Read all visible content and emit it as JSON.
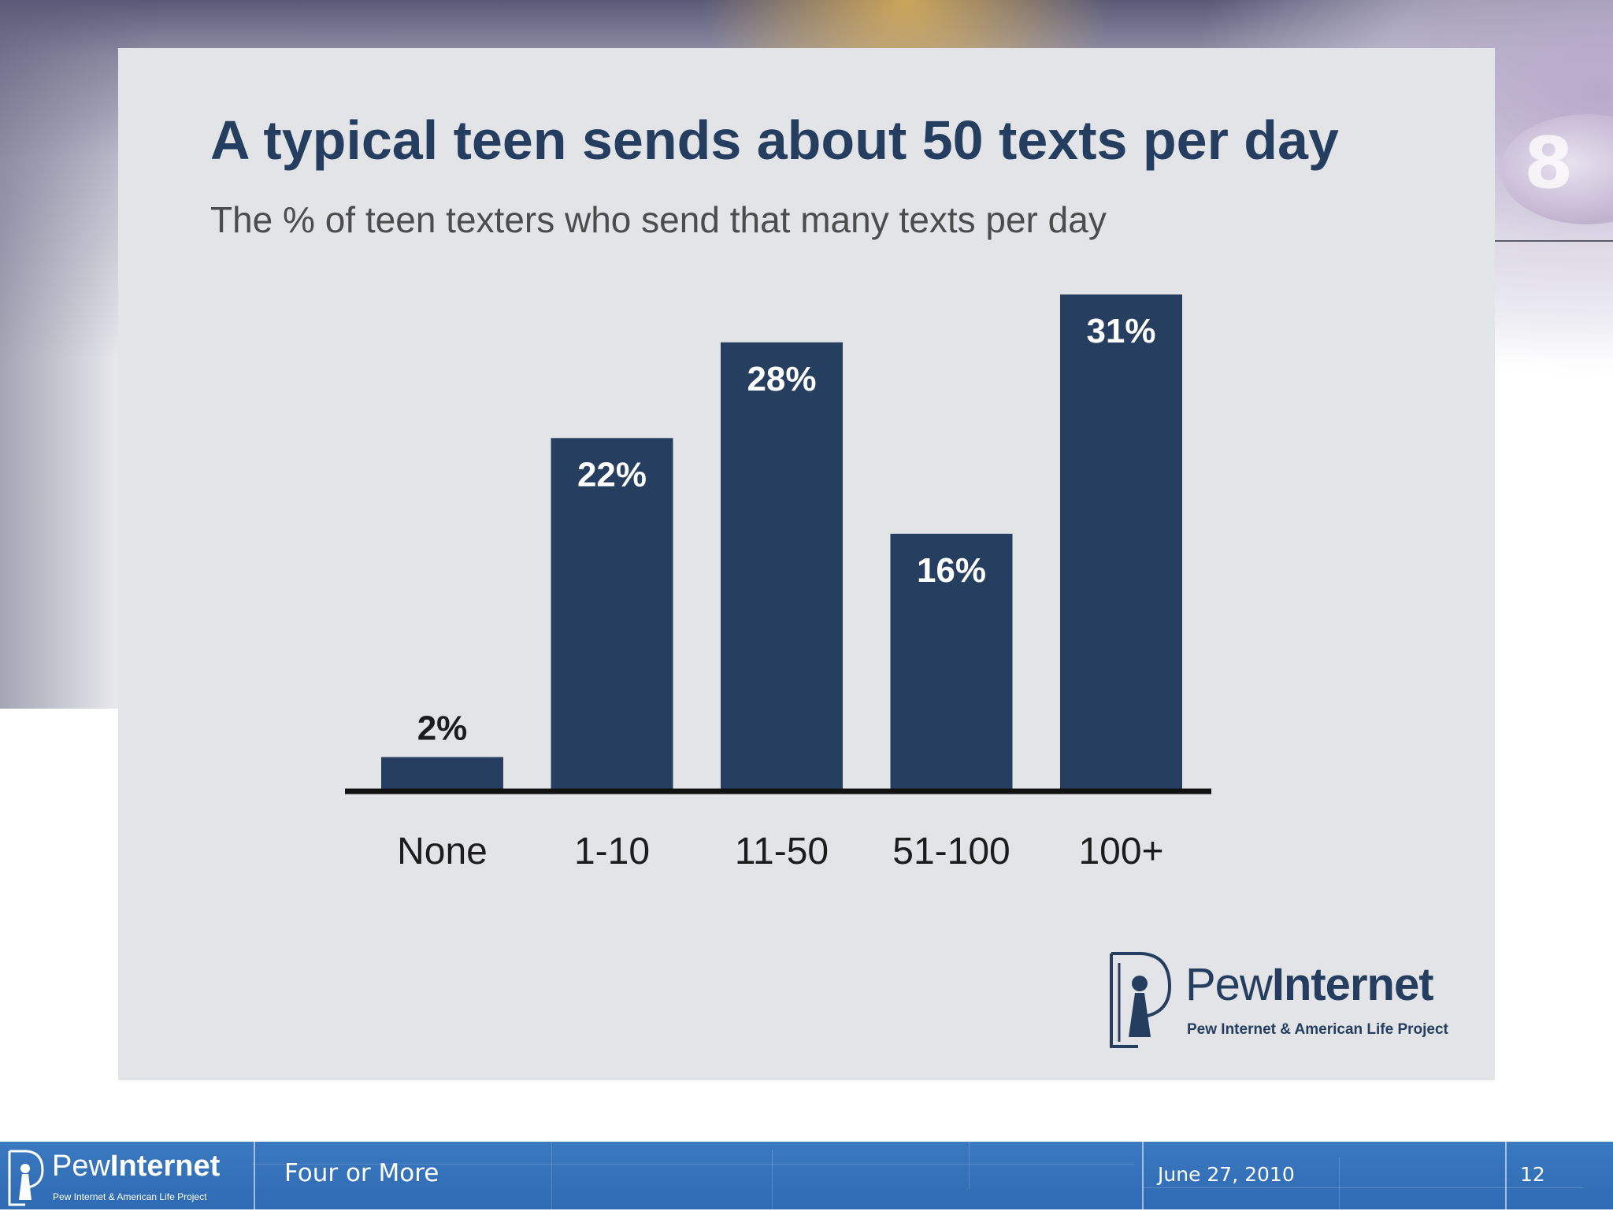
{
  "slide": {
    "title": "A typical teen sends about 50 texts per day",
    "subtitle": "The % of teen texters who send that many texts per day"
  },
  "chart_data": {
    "type": "bar",
    "title": "A typical teen sends about 50 texts per day",
    "subtitle": "The % of teen texters who send that many texts per day",
    "categories": [
      "None",
      "1-10",
      "11-50",
      "51-100",
      "100+"
    ],
    "values": [
      2,
      22,
      28,
      16,
      31
    ],
    "value_labels": [
      "2%",
      "22%",
      "28%",
      "16%",
      "31%"
    ],
    "unit": "%",
    "xlabel": "",
    "ylabel": "",
    "ylim": [
      0,
      31
    ],
    "grid": false,
    "legend": false,
    "bar_color": "#263f60"
  },
  "logo": {
    "name_light": "Pew",
    "name_bold": "Internet",
    "tagline": "Pew Internet & American Life Project"
  },
  "footer": {
    "logo_name_light": "Pew",
    "logo_name_bold": "Internet",
    "logo_tagline": "Pew Internet & American Life Project",
    "presentation_title": "Four or More",
    "date": "June 27, 2010",
    "slide_number": "12"
  },
  "colors": {
    "navy": "#253d5e",
    "panel": "#e3e4e8",
    "footer_blue": "#3474bb"
  }
}
